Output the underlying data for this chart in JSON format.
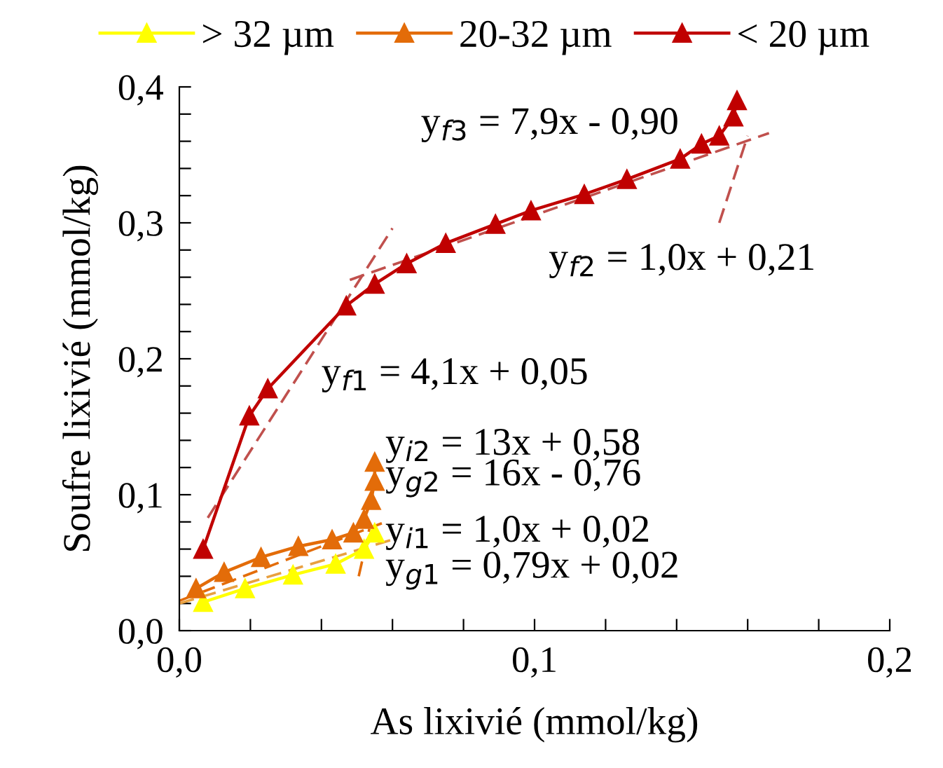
{
  "chart_data": {
    "type": "line",
    "xlabel": "As lixivié (mmol/kg)",
    "ylabel": "Soufre lixivié (mmol/kg)",
    "xlim": [
      0,
      0.2
    ],
    "ylim": [
      0,
      0.4
    ],
    "xticks": [
      {
        "value": 0,
        "label": "0,0"
      },
      {
        "value": 0.02,
        "label": null
      },
      {
        "value": 0.04,
        "label": null
      },
      {
        "value": 0.06,
        "label": null
      },
      {
        "value": 0.08,
        "label": null
      },
      {
        "value": 0.1,
        "label": "0,1"
      },
      {
        "value": 0.12,
        "label": null
      },
      {
        "value": 0.14,
        "label": null
      },
      {
        "value": 0.16,
        "label": null
      },
      {
        "value": 0.18,
        "label": null
      },
      {
        "value": 0.2,
        "label": "0,2"
      }
    ],
    "yticks": [
      {
        "value": 0,
        "label": "0,0"
      },
      {
        "value": 0.02,
        "label": null
      },
      {
        "value": 0.04,
        "label": null
      },
      {
        "value": 0.06,
        "label": null
      },
      {
        "value": 0.08,
        "label": null
      },
      {
        "value": 0.1,
        "label": "0,1"
      },
      {
        "value": 0.12,
        "label": null
      },
      {
        "value": 0.14,
        "label": null
      },
      {
        "value": 0.16,
        "label": null
      },
      {
        "value": 0.18,
        "label": null
      },
      {
        "value": 0.2,
        "label": "0,2"
      },
      {
        "value": 0.22,
        "label": null
      },
      {
        "value": 0.24,
        "label": null
      },
      {
        "value": 0.26,
        "label": null
      },
      {
        "value": 0.28,
        "label": null
      },
      {
        "value": 0.3,
        "label": "0,3"
      },
      {
        "value": 0.32,
        "label": null
      },
      {
        "value": 0.34,
        "label": null
      },
      {
        "value": 0.36,
        "label": null
      },
      {
        "value": 0.38,
        "label": null
      },
      {
        "value": 0.4,
        "label": "0,4"
      }
    ],
    "grid": false,
    "legend": "top",
    "marker": "triangle",
    "line_style": "solid",
    "series": [
      {
        "name": "> 32 µm",
        "color": "#ffff00",
        "x": [
          0.0067,
          0.0185,
          0.032,
          0.044,
          0.052,
          0.055
        ],
        "values": [
          0.021,
          0.031,
          0.041,
          0.049,
          0.06,
          0.072
        ]
      },
      {
        "name": "20-32 µm",
        "color": "#e36c09",
        "x": [
          0.0047,
          0.0126,
          0.023,
          0.0335,
          0.043,
          0.049,
          0.052,
          0.054,
          0.055,
          0.055
        ],
        "values": [
          0.031,
          0.043,
          0.054,
          0.062,
          0.067,
          0.072,
          0.082,
          0.096,
          0.11,
          0.124
        ]
      },
      {
        "name": "< 20 µm",
        "color": "#c00000",
        "x": [
          0.0067,
          0.0197,
          0.0249,
          0.047,
          0.055,
          0.064,
          0.075,
          0.089,
          0.099,
          0.114,
          0.126,
          0.141,
          0.147,
          0.152,
          0.156,
          0.157
        ],
        "values": [
          0.06,
          0.158,
          0.178,
          0.239,
          0.255,
          0.27,
          0.285,
          0.299,
          0.309,
          0.321,
          0.332,
          0.347,
          0.358,
          0.364,
          0.378,
          0.39
        ]
      },
      {
        "color": "#e8a040",
        "marker": "none",
        "line_style": "dashed",
        "x": [
          0.0,
          0.06
        ],
        "values": [
          0.02,
          0.067
        ]
      },
      {
        "color": "#e36c09",
        "marker": "none",
        "line_style": "dashed",
        "x": [
          0.0,
          0.057
        ],
        "values": [
          0.022,
          0.079
        ]
      },
      {
        "color": "#e36c09",
        "marker": "none",
        "line_style": "dashed",
        "x": [
          0.0505,
          0.0535
        ],
        "values": [
          0.04,
          0.075
        ]
      },
      {
        "color": "#c0504d",
        "marker": "none",
        "line_style": "dashed",
        "x": [
          0.008,
          0.06
        ],
        "values": [
          0.083,
          0.296
        ]
      },
      {
        "color": "#c0504d",
        "marker": "none",
        "line_style": "dashed",
        "x": [
          0.048,
          0.166
        ],
        "values": [
          0.258,
          0.366
        ]
      },
      {
        "color": "#c0504d",
        "marker": "none",
        "line_style": "dashed",
        "x": [
          0.152,
          0.16
        ],
        "values": [
          0.3,
          0.364
        ]
      }
    ],
    "annotations": [
      "y$_{f3}$ = 7,9x - 0,90",
      "y$_{f2}$ = 1,0x + 0,21",
      "y$_{f1}$ = 4,1x + 0,05",
      "y$_{i2}$ = 13x + 0,58",
      "y$_{g2}$ = 16x - 0,76",
      "y$_{i1}$ = 1,0x + 0,02",
      "y$_{g1}$ = 0,79x + 0,02"
    ]
  }
}
